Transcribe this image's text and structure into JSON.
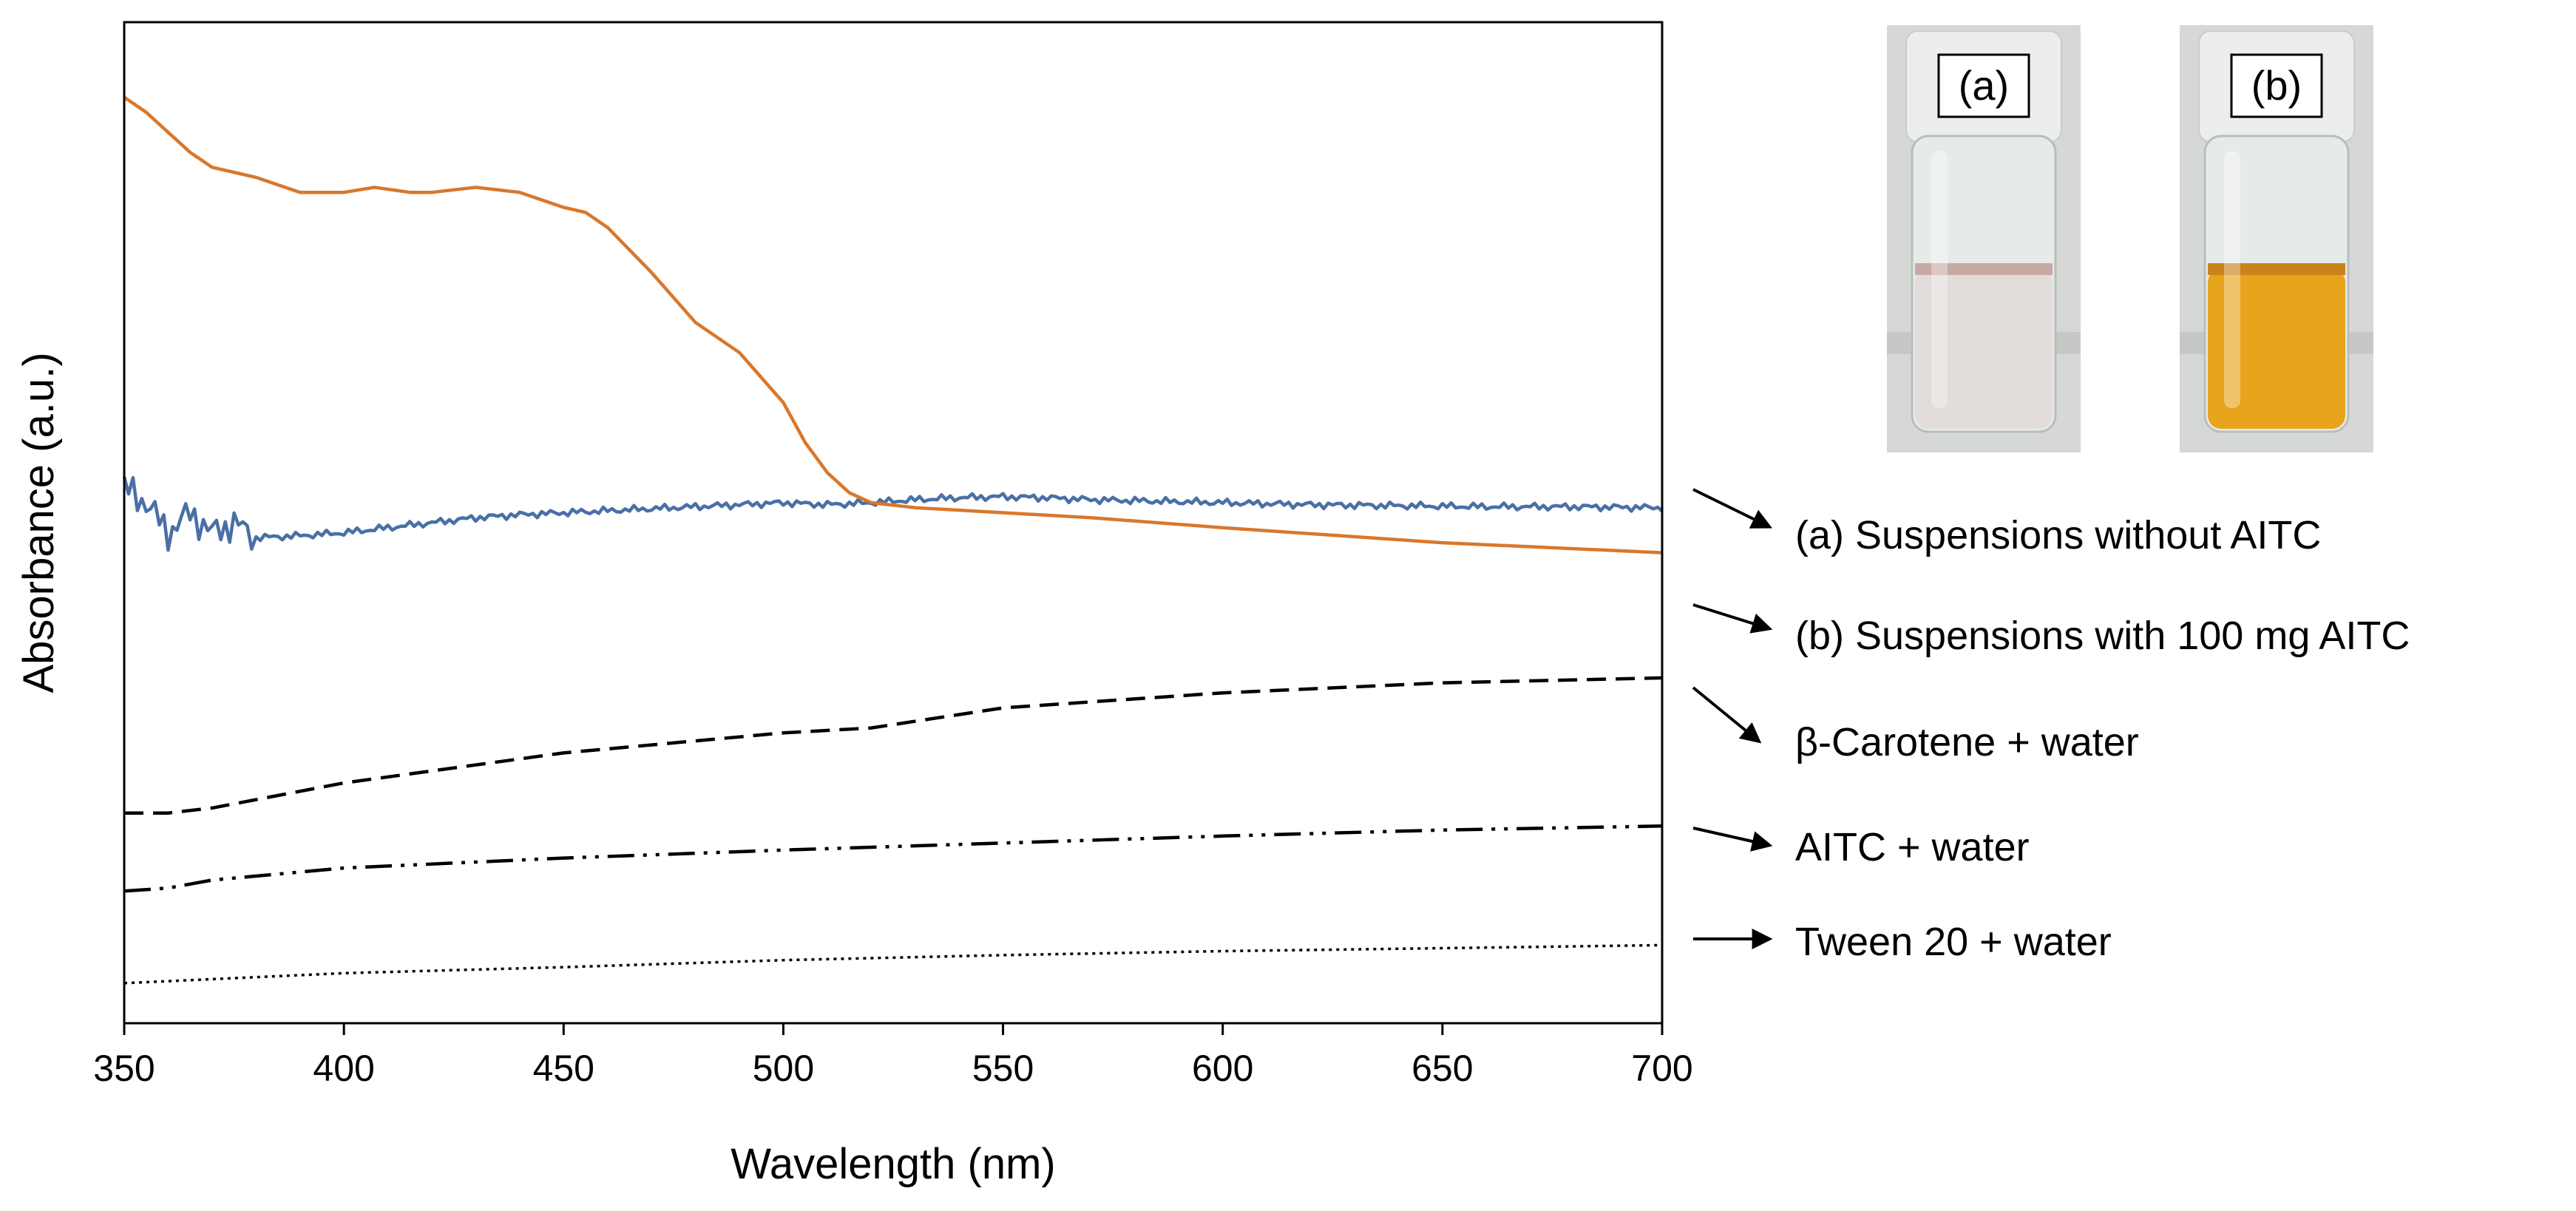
{
  "chart_data": {
    "type": "line",
    "title": "",
    "xlabel": "Wavelength (nm)",
    "ylabel": "Absorbance (a.u.)",
    "xlim": [
      350,
      700
    ],
    "ylim": [
      0,
      1
    ],
    "x_ticks": [
      350,
      400,
      450,
      500,
      550,
      600,
      650,
      700
    ],
    "x_tick_labels": [
      "350",
      "400",
      "450",
      "500",
      "550",
      "600",
      "650",
      "700"
    ],
    "y_ticks_shown": false,
    "grid": false,
    "series": [
      {
        "name": "(a) Suspensions without AITC",
        "color": "#4a6fa5",
        "style": "solid",
        "noisy": true,
        "x": [
          350,
          355,
          360,
          365,
          370,
          375,
          380,
          390,
          400,
          410,
          420,
          430,
          440,
          450,
          460,
          470,
          480,
          490,
          500,
          510,
          520,
          530,
          540,
          550,
          560,
          570,
          580,
          590,
          600,
          620,
          640,
          660,
          680,
          700
        ],
        "values": [
          0.535,
          0.52,
          0.49,
          0.51,
          0.49,
          0.5,
          0.485,
          0.487,
          0.49,
          0.495,
          0.5,
          0.505,
          0.508,
          0.51,
          0.512,
          0.514,
          0.516,
          0.518,
          0.52,
          0.518,
          0.52,
          0.523,
          0.525,
          0.526,
          0.525,
          0.523,
          0.522,
          0.521,
          0.52,
          0.518,
          0.517,
          0.516,
          0.516,
          0.515
        ]
      },
      {
        "name": "(b) Suspensions with 100 mg AITC",
        "color": "#d9772b",
        "style": "solid",
        "noisy": false,
        "x": [
          350,
          355,
          360,
          365,
          370,
          380,
          390,
          400,
          407,
          415,
          420,
          430,
          440,
          450,
          455,
          460,
          470,
          480,
          490,
          500,
          505,
          510,
          515,
          520,
          530,
          550,
          570,
          600,
          650,
          700
        ],
        "values": [
          0.925,
          0.91,
          0.89,
          0.87,
          0.855,
          0.845,
          0.83,
          0.83,
          0.835,
          0.83,
          0.83,
          0.835,
          0.83,
          0.815,
          0.81,
          0.795,
          0.75,
          0.7,
          0.67,
          0.62,
          0.58,
          0.55,
          0.53,
          0.52,
          0.515,
          0.51,
          0.505,
          0.495,
          0.48,
          0.47
        ]
      },
      {
        "name": "β-Carotene + water",
        "color": "#000000",
        "style": "dashed",
        "noisy": false,
        "x": [
          350,
          360,
          370,
          400,
          450,
          500,
          520,
          550,
          600,
          650,
          700
        ],
        "values": [
          0.21,
          0.21,
          0.215,
          0.24,
          0.27,
          0.29,
          0.295,
          0.315,
          0.33,
          0.34,
          0.345
        ]
      },
      {
        "name": "AITC + water",
        "color": "#000000",
        "style": "dashdotdot",
        "noisy": false,
        "x": [
          350,
          360,
          370,
          400,
          450,
          500,
          550,
          600,
          650,
          700
        ],
        "values": [
          0.132,
          0.135,
          0.143,
          0.155,
          0.165,
          0.173,
          0.18,
          0.187,
          0.193,
          0.197
        ]
      },
      {
        "name": "Tween 20 + water",
        "color": "#000000",
        "style": "dotted",
        "noisy": false,
        "x": [
          350,
          400,
          450,
          500,
          550,
          600,
          650,
          700
        ],
        "values": [
          0.04,
          0.05,
          0.056,
          0.063,
          0.068,
          0.072,
          0.075,
          0.078
        ]
      }
    ],
    "inset_images": [
      {
        "label": "(a)",
        "liquid": "clear"
      },
      {
        "label": "(b)",
        "liquid": "orange"
      }
    ]
  }
}
